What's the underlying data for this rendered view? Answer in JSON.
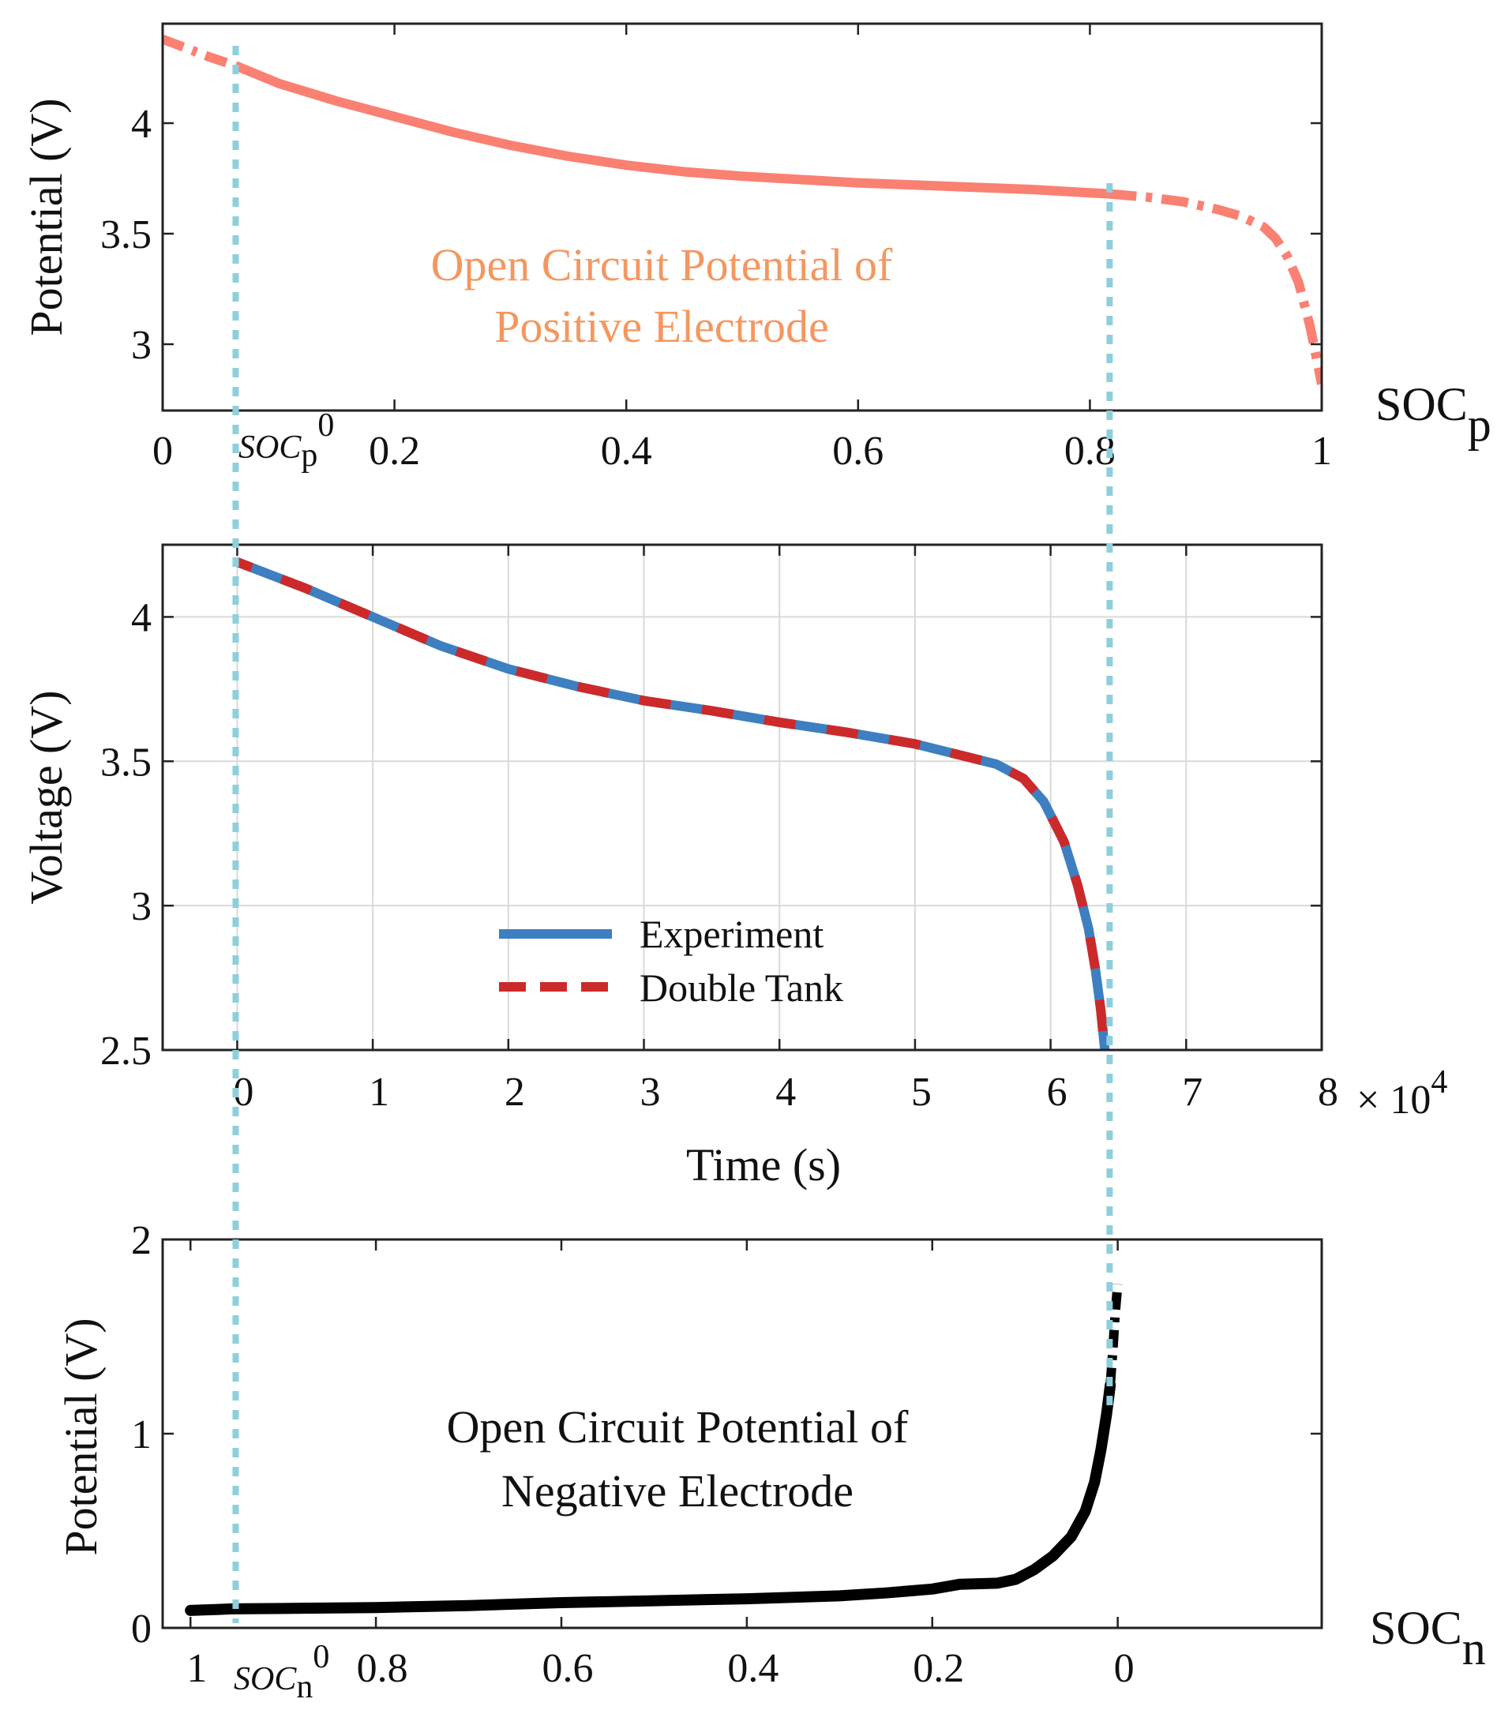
{
  "colors": {
    "positive_ocp": "#fa8072",
    "positive_annotation": "#f4975f",
    "experiment": "#3d7fc1",
    "double_tank": "#cc2a2a",
    "negative_ocp": "#000000",
    "guide": "#8ecfdd",
    "grid": "#d9d9d9"
  },
  "chart_data": [
    {
      "type": "line",
      "panel": "top",
      "ylabel": "Potential (V)",
      "xlabel_main": "SOC",
      "xlabel_sub": "p",
      "xlim": [
        0,
        1
      ],
      "ylim": [
        2.7,
        4.45
      ],
      "xticks": [
        0,
        0.2,
        0.4,
        0.6,
        0.8,
        1
      ],
      "xtick_labels": [
        "0",
        "0.2",
        "0.4",
        "0.6",
        "0.8",
        "1"
      ],
      "yticks": [
        3,
        3.5,
        4
      ],
      "ytick_labels": [
        "3",
        "3.5",
        "4"
      ],
      "marker_label_main": "SOC",
      "marker_label_sub": "p",
      "marker_label_sup": "0",
      "soc_p0": 0.063,
      "soc_p_end": 0.817,
      "annotation_line1": "Open Circuit Potential of",
      "annotation_line2": "Positive Electrode",
      "series": [
        {
          "name": "OCP positive",
          "x": [
            0,
            0.02,
            0.04,
            0.063,
            0.1,
            0.15,
            0.2,
            0.25,
            0.3,
            0.35,
            0.4,
            0.45,
            0.5,
            0.55,
            0.6,
            0.65,
            0.7,
            0.75,
            0.8,
            0.817,
            0.85,
            0.88,
            0.91,
            0.93,
            0.95,
            0.96,
            0.97,
            0.98,
            0.99,
            1.0
          ],
          "y": [
            4.38,
            4.34,
            4.3,
            4.26,
            4.18,
            4.1,
            4.03,
            3.96,
            3.9,
            3.85,
            3.81,
            3.78,
            3.76,
            3.745,
            3.73,
            3.72,
            3.71,
            3.7,
            3.685,
            3.68,
            3.665,
            3.645,
            3.61,
            3.58,
            3.53,
            3.48,
            3.4,
            3.28,
            3.08,
            2.82
          ]
        }
      ]
    },
    {
      "type": "line",
      "panel": "middle",
      "ylabel": "Voltage (V)",
      "xlabel": "Time (s)",
      "xlim": [
        -0.55,
        8
      ],
      "ylim": [
        2.5,
        4.25
      ],
      "xticks": [
        0,
        1,
        2,
        3,
        4,
        5,
        6,
        7,
        8
      ],
      "xtick_labels": [
        "0",
        "1",
        "2",
        "3",
        "4",
        "5",
        "6",
        "7",
        "8"
      ],
      "x_multiplier_base": "× 10",
      "x_multiplier_exp": "4",
      "yticks": [
        2.5,
        3,
        3.5,
        4
      ],
      "ytick_labels": [
        "2.5",
        "3",
        "3.5",
        "4"
      ],
      "grid": true,
      "legend": [
        "Experiment",
        "Double Tank"
      ],
      "legend_position": "center",
      "series": [
        {
          "name": "Experiment",
          "x": [
            0,
            0.5,
            1,
            1.5,
            2,
            2.5,
            3,
            3.5,
            4,
            4.5,
            5,
            5.3,
            5.6,
            5.8,
            5.95,
            6.1,
            6.2,
            6.28,
            6.33,
            6.37,
            6.4
          ],
          "y": [
            4.19,
            4.1,
            4.0,
            3.9,
            3.82,
            3.76,
            3.71,
            3.675,
            3.635,
            3.6,
            3.56,
            3.525,
            3.49,
            3.44,
            3.36,
            3.22,
            3.07,
            2.92,
            2.78,
            2.64,
            2.5
          ]
        },
        {
          "name": "Double Tank",
          "x": [
            0,
            0.5,
            1,
            1.5,
            2,
            2.5,
            3,
            3.5,
            4,
            4.5,
            5,
            5.3,
            5.6,
            5.8,
            5.95,
            6.1,
            6.2,
            6.28,
            6.33,
            6.37,
            6.4
          ],
          "y": [
            4.19,
            4.1,
            4.0,
            3.9,
            3.82,
            3.76,
            3.71,
            3.675,
            3.635,
            3.6,
            3.56,
            3.525,
            3.49,
            3.44,
            3.36,
            3.22,
            3.07,
            2.92,
            2.78,
            2.64,
            2.5
          ]
        }
      ]
    },
    {
      "type": "line",
      "panel": "bottom",
      "ylabel": "Potential (V)",
      "xlabel_main": "SOC",
      "xlabel_sub": "n",
      "xlim": [
        1.03,
        -0.22
      ],
      "ylim": [
        0,
        2
      ],
      "xticks": [
        1,
        0.8,
        0.6,
        0.4,
        0.2,
        0
      ],
      "xtick_labels": [
        "1",
        "0.8",
        "0.6",
        "0.4",
        "0.2",
        "0"
      ],
      "yticks": [
        0,
        1,
        2
      ],
      "ytick_labels": [
        "0",
        "1",
        "2"
      ],
      "marker_label_main": "SOC",
      "marker_label_sub": "n",
      "marker_label_sup": "0",
      "soc_n0": 0.955,
      "soc_n_end": 0.008,
      "annotation_line1": "Open Circuit Potential of",
      "annotation_line2": "Negative Electrode",
      "series": [
        {
          "name": "OCP negative",
          "x": [
            1.0,
            0.97,
            0.955,
            0.9,
            0.8,
            0.7,
            0.6,
            0.5,
            0.4,
            0.3,
            0.25,
            0.2,
            0.17,
            0.13,
            0.11,
            0.09,
            0.07,
            0.05,
            0.035,
            0.025,
            0.018,
            0.012,
            0.008,
            0.005,
            0.003,
            0.0
          ],
          "y": [
            0.09,
            0.095,
            0.098,
            0.1,
            0.105,
            0.115,
            0.13,
            0.14,
            0.15,
            0.165,
            0.18,
            0.2,
            0.225,
            0.23,
            0.25,
            0.3,
            0.37,
            0.47,
            0.6,
            0.75,
            0.92,
            1.1,
            1.25,
            1.45,
            1.6,
            1.77
          ]
        }
      ]
    }
  ]
}
